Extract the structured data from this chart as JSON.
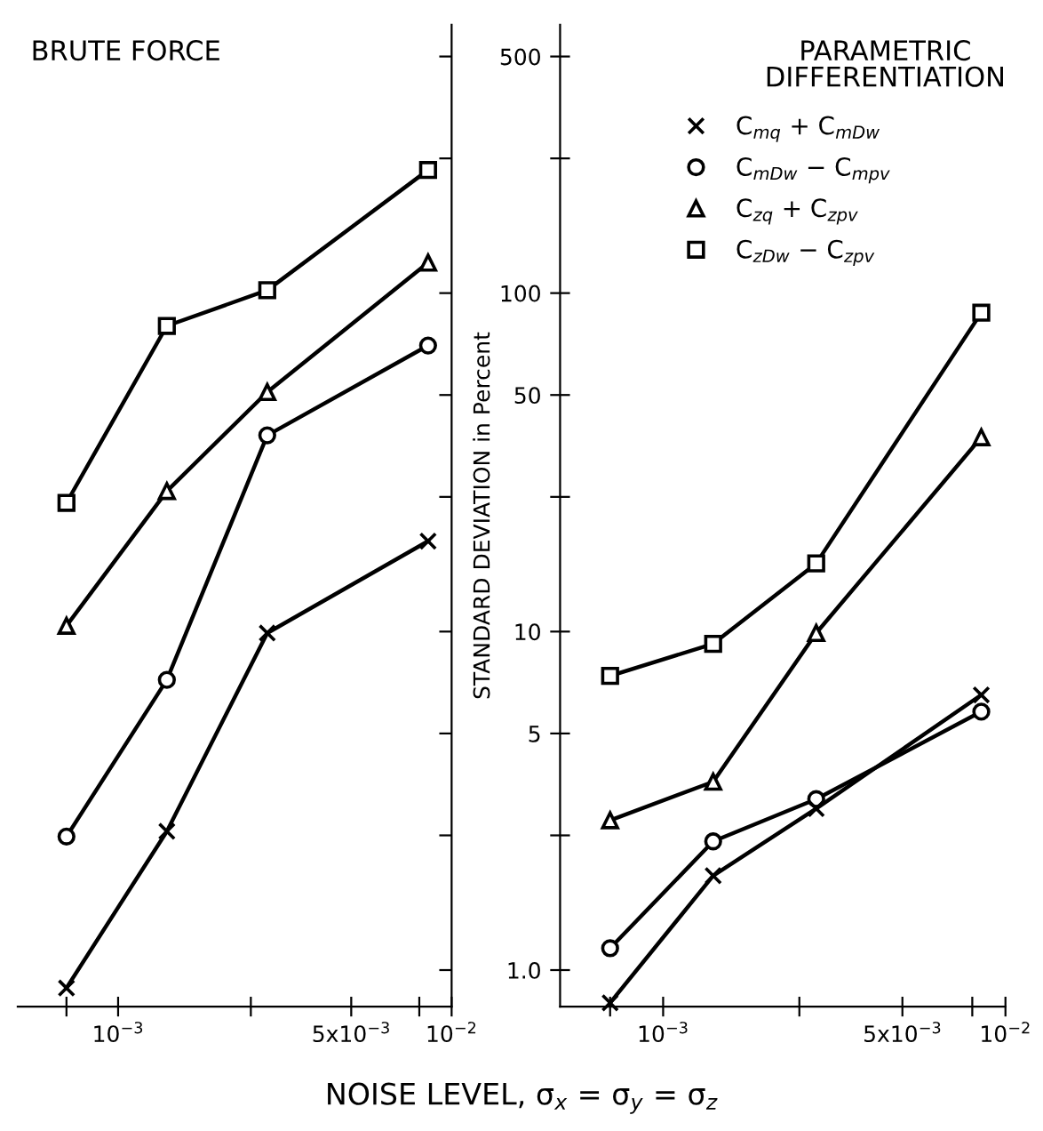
{
  "chart_data": [
    {
      "type": "line",
      "title": "BRUTE FORCE",
      "xlabel": "NOISE LEVEL, σ$_{x}$ = σ$_{y}$ = σ$_{z}$",
      "log": "xy",
      "grid": false,
      "legend": false,
      "tick_labels": "x",
      "line_style": "solid",
      "x": [
        0.0007,
        0.0014,
        0.0028,
        0.0085
      ],
      "xlim": [
        0.0005,
        0.01
      ],
      "xticks": [
        {
          "value": 0.0007,
          "label": null
        },
        {
          "value": 0.001,
          "label": "10$^{−3}$"
        },
        {
          "value": 0.0025,
          "label": null
        },
        {
          "value": 0.005,
          "label": "5x10$^{−3}$"
        },
        {
          "value": 0.008,
          "label": null
        },
        {
          "value": 0.01,
          "label": "10$^{−2}$"
        }
      ],
      "ylim": [
        0.78,
        620
      ],
      "yticks": [
        {
          "value": 1,
          "label": null
        },
        {
          "value": 2.5,
          "label": null
        },
        {
          "value": 5,
          "label": null
        },
        {
          "value": 10,
          "label": null
        },
        {
          "value": 25,
          "label": null
        },
        {
          "value": 50,
          "label": null
        },
        {
          "value": 100,
          "label": null
        },
        {
          "value": 250,
          "label": null
        },
        {
          "value": 500,
          "label": null
        }
      ],
      "series": [
        {
          "color": "#000000",
          "marker": "cross",
          "values": [
            0.885,
            2.57,
            9.9,
            18.5
          ]
        },
        {
          "color": "#000000",
          "marker": "circle",
          "values": [
            2.48,
            7.2,
            38,
            70
          ]
        },
        {
          "color": "#000000",
          "marker": "triangle",
          "values": [
            10.4,
            26,
            51,
            123
          ]
        },
        {
          "color": "#000000",
          "marker": "square",
          "values": [
            24,
            80,
            102,
            231
          ]
        }
      ]
    },
    {
      "type": "line",
      "title": "PARAMETRIC\nDIFFERENTIATION",
      "ylabel": "STANDARD DEVIATION in Percent",
      "log": "xy",
      "grid": false,
      "legend": "top right",
      "line_style": "solid",
      "x": [
        0.0007,
        0.0014,
        0.0028,
        0.0085
      ],
      "xlim": [
        0.0005,
        0.01
      ],
      "xticks": [
        {
          "value": 0.0007,
          "label": null
        },
        {
          "value": 0.001,
          "label": "10$^{−3}$"
        },
        {
          "value": 0.0025,
          "label": null
        },
        {
          "value": 0.005,
          "label": "5x10$^{−3}$"
        },
        {
          "value": 0.008,
          "label": null
        },
        {
          "value": 0.01,
          "label": "10$^{−2}$"
        }
      ],
      "ylim": [
        0.78,
        620
      ],
      "yticks": [
        {
          "value": 1,
          "label": "1.0"
        },
        {
          "value": 2.5,
          "label": null
        },
        5,
        10,
        {
          "value": 25,
          "label": null
        },
        50,
        100,
        {
          "value": 250,
          "label": null
        },
        500
      ],
      "series": [
        {
          "name": "C$_{mq}$ + C$_{mDw}$",
          "color": "#000000",
          "marker": "cross",
          "values": [
            0.8,
            1.9,
            3.0,
            6.5
          ]
        },
        {
          "name": "C$_{mDw}$ − C$_{mpv}$",
          "color": "#000000",
          "marker": "circle",
          "values": [
            1.16,
            2.4,
            3.2,
            5.8
          ]
        },
        {
          "name": "C$_{zq}$ + C$_{zpv}$",
          "color": "#000000",
          "marker": "triangle",
          "values": [
            2.77,
            3.6,
            9.9,
            37.5
          ]
        },
        {
          "name": "C$_{zDw}$ − C$_{zpv}$",
          "color": "#000000",
          "marker": "square",
          "values": [
            7.4,
            9.2,
            15.9,
            87.5
          ]
        }
      ]
    }
  ]
}
